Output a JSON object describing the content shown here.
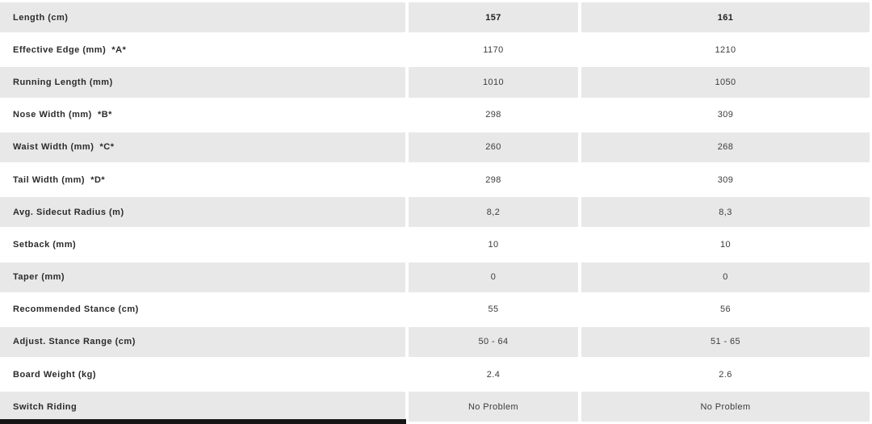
{
  "spec_table": {
    "size_columns": [
      "157",
      "161"
    ],
    "rows": [
      {
        "label": "Length (cm)",
        "col1": "157",
        "col2": "161",
        "bold_values": true,
        "striped": true
      },
      {
        "label": "Effective Edge (mm)  *A*",
        "col1": "1170",
        "col2": "1210",
        "bold_values": false,
        "striped": false
      },
      {
        "label": "Running Length (mm)",
        "col1": "1010",
        "col2": "1050",
        "bold_values": false,
        "striped": true
      },
      {
        "label": "Nose Width (mm)  *B*",
        "col1": "298",
        "col2": "309",
        "bold_values": false,
        "striped": false
      },
      {
        "label": "Waist Width (mm)  *C*",
        "col1": "260",
        "col2": "268",
        "bold_values": false,
        "striped": true
      },
      {
        "label": "Tail Width (mm)  *D*",
        "col1": "298",
        "col2": "309",
        "bold_values": false,
        "striped": false
      },
      {
        "label": "Avg. Sidecut Radius (m)",
        "col1": "8,2",
        "col2": "8,3",
        "bold_values": false,
        "striped": true
      },
      {
        "label": "Setback (mm)",
        "col1": "10",
        "col2": "10",
        "bold_values": false,
        "striped": false
      },
      {
        "label": "Taper (mm)",
        "col1": "0",
        "col2": "0",
        "bold_values": false,
        "striped": true
      },
      {
        "label": "Recommended Stance (cm)",
        "col1": "55",
        "col2": "56",
        "bold_values": false,
        "striped": false
      },
      {
        "label": "Adjust. Stance Range (cm)",
        "col1": "50 - 64",
        "col2": "51 - 65",
        "bold_values": false,
        "striped": true
      },
      {
        "label": "Board Weight (kg)",
        "col1": "2.4",
        "col2": "2.6",
        "bold_values": false,
        "striped": false
      },
      {
        "label": "Switch Riding",
        "col1": "No Problem",
        "col2": "No Problem",
        "bold_values": false,
        "striped": true
      }
    ],
    "colors": {
      "row_stripe": "#e8e8e8",
      "label_text": "#2b2b2b",
      "value_text": "#3c3c3c",
      "cutoff_bar": "#151515"
    }
  }
}
